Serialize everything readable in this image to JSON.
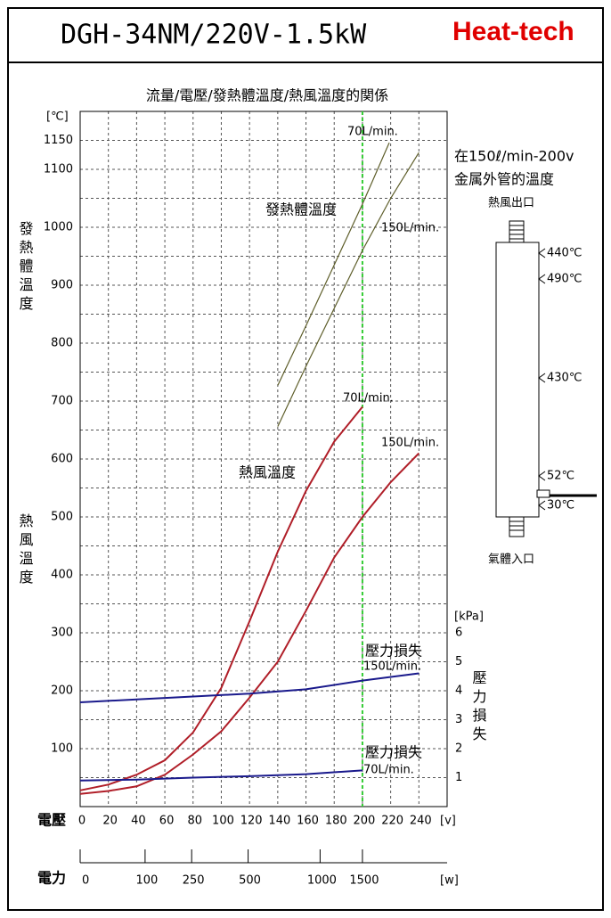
{
  "header": {
    "model": "DGH-34NM/220V-1.5kW",
    "brand": "Heat-tech"
  },
  "chart_data": {
    "type": "line",
    "title": "流量/電壓/發熱體溫度/熱風溫度的関係",
    "x_label": "電壓",
    "x_unit": "[v]",
    "y_label": "[℃]",
    "y2_label": "[kPa]",
    "y_titles": [
      {
        "text": "發熱體溫度",
        "color": "#8b1a2a"
      },
      {
        "text": "熱風溫度",
        "color": "#cc2222"
      }
    ],
    "y2_title": {
      "text": "壓力損失",
      "color": "#3a3aaa"
    },
    "xlim": [
      0,
      260
    ],
    "ylim": [
      0,
      1200
    ],
    "y2lim": [
      0,
      6
    ],
    "xticks": [
      0,
      20,
      40,
      60,
      80,
      100,
      120,
      140,
      160,
      180,
      200,
      220,
      240
    ],
    "yticks": [
      100,
      200,
      300,
      400,
      500,
      600,
      700,
      800,
      900,
      1000,
      1100,
      1150
    ],
    "y_minor_ticks": [
      50,
      150,
      250,
      350,
      450,
      550,
      650,
      750,
      850,
      950,
      1050
    ],
    "y2ticks": [
      1,
      2,
      3,
      4,
      5,
      6
    ],
    "grid": true,
    "marker_x": 200,
    "marker_color": "#33cc33",
    "x2": {
      "label": "電力",
      "unit": "[w]",
      "ticks": [
        0,
        100,
        250,
        500,
        1000,
        1500
      ],
      "tick_at": [
        0,
        46,
        79,
        119,
        170,
        200
      ]
    },
    "series": [
      {
        "color": "#5e5e2a",
        "x": [
          140,
          160,
          180,
          200,
          219
        ],
        "values": [
          727,
          830,
          935,
          1040,
          1146
        ]
      },
      {
        "color": "#5e5e2a",
        "x": [
          140,
          160,
          180,
          200,
          220,
          240
        ],
        "values": [
          656,
          760,
          860,
          960,
          1050,
          1129
        ]
      },
      {
        "color": "#b01e28",
        "x": [
          0,
          20,
          40,
          60,
          80,
          100,
          120,
          140,
          160,
          180,
          200
        ],
        "values": [
          28,
          38,
          55,
          80,
          128,
          205,
          320,
          440,
          545,
          630,
          690
        ]
      },
      {
        "color": "#b01e28",
        "x": [
          0,
          20,
          40,
          60,
          80,
          100,
          120,
          140,
          160,
          180,
          200,
          220,
          240
        ],
        "values": [
          22,
          27,
          35,
          55,
          90,
          130,
          188,
          250,
          338,
          430,
          500,
          560,
          610
        ]
      },
      {
        "color": "#1a1a8c",
        "axis": "y2",
        "x": [
          0,
          40,
          80,
          120,
          160,
          200,
          240
        ],
        "values": [
          3.6,
          3.7,
          3.8,
          3.9,
          4.05,
          4.35,
          4.6
        ]
      },
      {
        "color": "#1a1a8c",
        "axis": "y2",
        "x": [
          0,
          40,
          80,
          120,
          160,
          200
        ],
        "values": [
          0.9,
          0.93,
          1.0,
          1.05,
          1.12,
          1.25
        ]
      }
    ],
    "annotations": [
      {
        "text": "70L/min.",
        "color": "#000000"
      },
      {
        "text": "150L/min.",
        "color": "#000000"
      },
      {
        "text": "發熱體溫度",
        "color": "#8b1a2a"
      },
      {
        "text": "70L/min.",
        "color": "#000000"
      },
      {
        "text": "150L/min.",
        "color": "#000000"
      },
      {
        "text": "熱風溫度",
        "color": "#cc2222"
      },
      {
        "text": "壓力損失",
        "color": "#3a3aaa"
      },
      {
        "text": "150L/min.",
        "color": "#000000"
      },
      {
        "text": "壓力損失",
        "color": "#3a3aaa"
      },
      {
        "text": "70L/min.",
        "color": "#000000"
      }
    ]
  },
  "diagram": {
    "title": [
      "在150ℓ/min-200v",
      "金属外管的溫度"
    ],
    "outlet": "熱風出口",
    "inlet": "氣體入口",
    "temperatures": [
      {
        "value": 440,
        "label": "440℃"
      },
      {
        "value": 490,
        "label": "490℃"
      },
      {
        "value": 430,
        "label": "430℃"
      },
      {
        "value": 52,
        "label": "52℃"
      },
      {
        "value": 30,
        "label": "30℃"
      }
    ]
  }
}
